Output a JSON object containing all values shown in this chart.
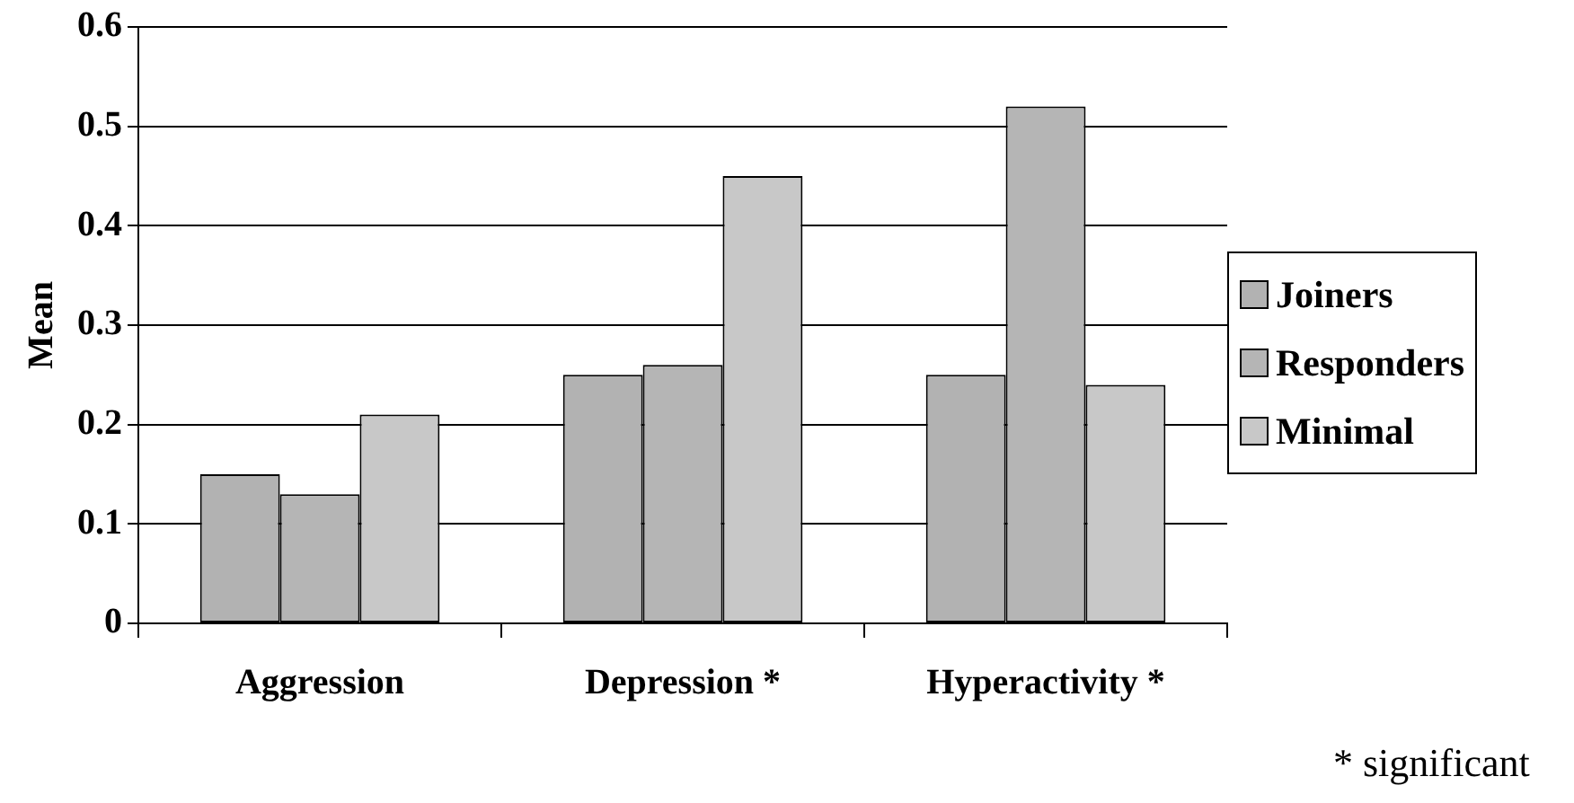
{
  "chart_data": {
    "type": "bar",
    "ylabel": "Mean",
    "categories": [
      "Aggression",
      "Depression *",
      "Hyperactivity *"
    ],
    "series": [
      {
        "name": "Joiners",
        "color": "#b2b2b2",
        "values": [
          0.15,
          0.25,
          0.25
        ]
      },
      {
        "name": "Responders",
        "color": "#b5b5b5",
        "values": [
          0.13,
          0.26,
          0.52
        ]
      },
      {
        "name": "Minimal",
        "color": "#c8c8c8",
        "values": [
          0.21,
          0.45,
          0.24
        ]
      }
    ],
    "ylim": [
      0,
      0.6
    ],
    "yticks": [
      0,
      0.1,
      0.2,
      0.3,
      0.4,
      0.5,
      0.6
    ],
    "grid": "y",
    "legend": "right",
    "annotations": [
      "* significant"
    ]
  }
}
